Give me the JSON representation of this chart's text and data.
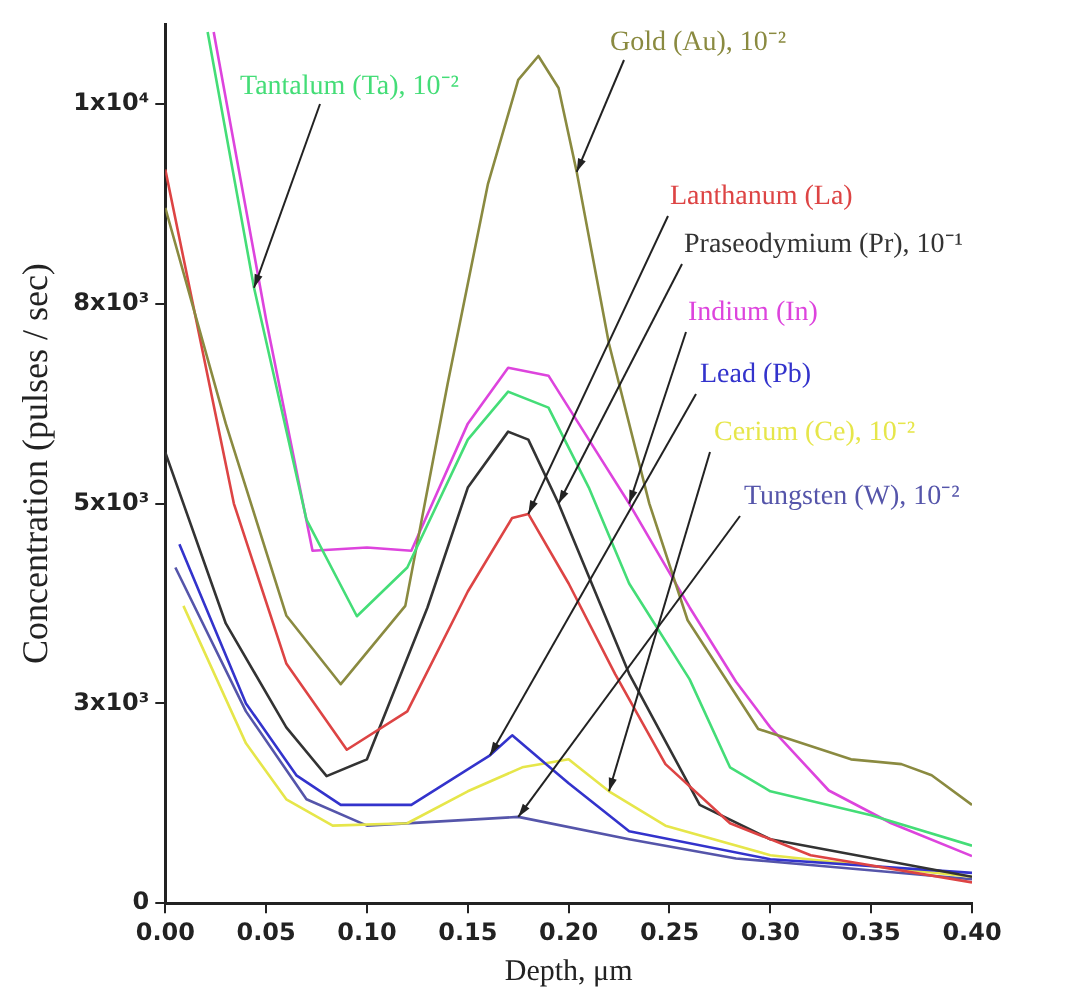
{
  "chart_data": {
    "type": "line",
    "xlabel": "Depth, μm",
    "ylabel": "Concentration (pulses / sec)",
    "xlim": [
      0,
      0.4
    ],
    "xticks": [
      {
        "value": 0,
        "label": "0.00"
      },
      {
        "value": 0.05,
        "label": "0.05"
      },
      {
        "value": 0.1,
        "label": "0.10"
      },
      {
        "value": 0.15,
        "label": "0.15"
      },
      {
        "value": 0.2,
        "label": "0.20"
      },
      {
        "value": 0.25,
        "label": "0.25"
      },
      {
        "value": 0.3,
        "label": "0.30"
      },
      {
        "value": 0.35,
        "label": "0.35"
      },
      {
        "value": 0.4,
        "label": "0.40"
      }
    ],
    "ylim": [
      0,
      11000
    ],
    "yticks": [
      {
        "value": 0,
        "label": "0"
      },
      {
        "value": 2500,
        "label": "3x10³"
      },
      {
        "value": 5000,
        "label": "5x10³"
      },
      {
        "value": 7500,
        "label": "8x10³"
      },
      {
        "value": 10000,
        "label": "1x10⁴"
      }
    ],
    "grid": false,
    "legend": false,
    "marker": "none",
    "line_style": "solid",
    "series": [
      {
        "name": "Tantalum (Ta), 10⁻²",
        "color": "#44dd77",
        "x": [
          0.021,
          0.044,
          0.07,
          0.095,
          0.12,
          0.15,
          0.17,
          0.19,
          0.21,
          0.23,
          0.26,
          0.28,
          0.3,
          0.35,
          0.4
        ],
        "values": [
          10900,
          7700,
          4800,
          3590,
          4200,
          5800,
          6400,
          6200,
          5200,
          4000,
          2800,
          1700,
          1400,
          1100,
          720
        ]
      },
      {
        "name": "Gold (Au), 10⁻²",
        "color": "#8a8a40",
        "x": [
          0,
          0.03,
          0.06,
          0.087,
          0.119,
          0.14,
          0.16,
          0.175,
          0.185,
          0.195,
          0.204,
          0.22,
          0.24,
          0.259,
          0.294,
          0.34,
          0.365,
          0.38,
          0.4
        ],
        "values": [
          8700,
          6000,
          3600,
          2740,
          3720,
          6500,
          9000,
          10300,
          10600,
          10200,
          9150,
          7000,
          5000,
          3540,
          2180,
          1800,
          1740,
          1600,
          1230
        ]
      },
      {
        "name": "Lanthanum (La)",
        "color": "#dd4444",
        "x": [
          0,
          0.034,
          0.06,
          0.09,
          0.12,
          0.15,
          0.172,
          0.18,
          0.2,
          0.223,
          0.248,
          0.28,
          0.32,
          0.4
        ],
        "values": [
          9180,
          5000,
          3000,
          1920,
          2400,
          3900,
          4820,
          4870,
          4000,
          2870,
          1740,
          1000,
          600,
          260
        ]
      },
      {
        "name": "Praseodymium (Pr), 10⁻¹",
        "color": "#333333",
        "x": [
          0,
          0.03,
          0.06,
          0.08,
          0.1,
          0.13,
          0.15,
          0.17,
          0.18,
          0.195,
          0.23,
          0.265,
          0.3,
          0.4
        ],
        "values": [
          5640,
          3500,
          2200,
          1590,
          1800,
          3700,
          5200,
          5900,
          5800,
          5000,
          2870,
          1230,
          800,
          330
        ]
      },
      {
        "name": "Indium (In)",
        "color": "#dd44dd",
        "x": [
          0.024,
          0.05,
          0.073,
          0.1,
          0.122,
          0.15,
          0.17,
          0.19,
          0.21,
          0.23,
          0.26,
          0.283,
          0.3,
          0.329,
          0.36,
          0.4
        ],
        "values": [
          10900,
          7300,
          4410,
          4450,
          4410,
          6000,
          6700,
          6600,
          5800,
          5000,
          3700,
          2770,
          2200,
          1410,
          1000,
          590
        ]
      },
      {
        "name": "Lead (Pb)",
        "color": "#3333cc",
        "x": [
          0.007,
          0.04,
          0.065,
          0.087,
          0.122,
          0.161,
          0.172,
          0.2,
          0.23,
          0.3,
          0.4
        ],
        "values": [
          4490,
          2500,
          1600,
          1230,
          1230,
          1850,
          2100,
          1500,
          900,
          550,
          380
        ]
      },
      {
        "name": "Cerium (Ce), 10⁻²",
        "color": "#e6e64a",
        "x": [
          0.009,
          0.04,
          0.06,
          0.083,
          0.12,
          0.15,
          0.177,
          0.2,
          0.22,
          0.248,
          0.3,
          0.4
        ],
        "values": [
          3720,
          2000,
          1300,
          970,
          1000,
          1400,
          1700,
          1800,
          1400,
          970,
          600,
          330
        ]
      },
      {
        "name": "Tungsten (W), 10⁻²",
        "color": "#5555aa",
        "x": [
          0.005,
          0.04,
          0.07,
          0.1,
          0.175,
          0.23,
          0.283,
          0.4
        ],
        "values": [
          4200,
          2400,
          1300,
          970,
          1080,
          800,
          560,
          300
        ]
      }
    ]
  }
}
